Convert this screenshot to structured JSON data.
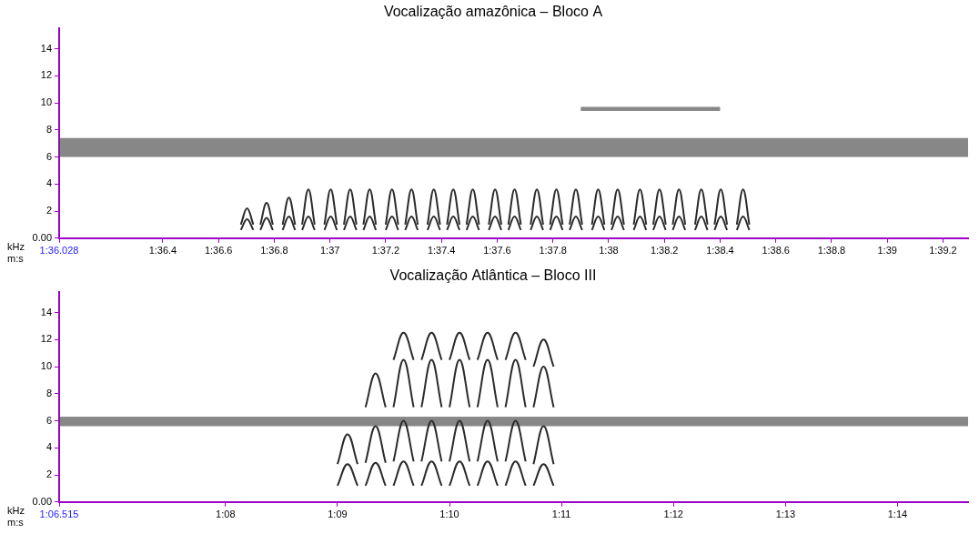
{
  "chart_data": [
    {
      "type": "spectrogram",
      "title": "Vocalização amazônica – Bloco A",
      "x_label": "m:s",
      "y_label": "kHz",
      "color": "#2b2b2b",
      "grid": false,
      "xlim": [
        96.028,
        99.29
      ],
      "ylim": [
        0,
        15.5
      ],
      "xticks": [
        {
          "value": 96.028,
          "label": "1:36.028"
        },
        {
          "value": 96.4,
          "label": "1:36.4"
        },
        {
          "value": 96.6,
          "label": "1:36.6"
        },
        {
          "value": 96.8,
          "label": "1:36.8"
        },
        {
          "value": 97.0,
          "label": "1:37"
        },
        {
          "value": 97.2,
          "label": "1:37.2"
        },
        {
          "value": 97.4,
          "label": "1:37.4"
        },
        {
          "value": 97.6,
          "label": "1:37.6"
        },
        {
          "value": 97.8,
          "label": "1:37.8"
        },
        {
          "value": 98.0,
          "label": "1:38"
        },
        {
          "value": 98.2,
          "label": "1:38.2"
        },
        {
          "value": 98.4,
          "label": "1:38.4"
        },
        {
          "value": 98.6,
          "label": "1:38.6"
        },
        {
          "value": 98.8,
          "label": "1:38.8"
        },
        {
          "value": 99.0,
          "label": "1:39"
        },
        {
          "value": 99.2,
          "label": "1:39.2"
        }
      ],
      "yticks": [
        {
          "value": 0,
          "label": "0.00"
        },
        2,
        4,
        6,
        8,
        10,
        12,
        14
      ],
      "bands": [
        {
          "start": 96.028,
          "end": 99.29,
          "low": 6.0,
          "high": 7.4
        },
        {
          "start": 97.9,
          "end": 98.4,
          "low": 9.4,
          "high": 9.7
        }
      ],
      "notes": [
        {
          "start": 96.68,
          "end": 96.725,
          "arches": [
            {
              "low": 1.0,
              "high": 2.2
            },
            {
              "low": 0.6,
              "high": 1.4
            }
          ]
        },
        {
          "start": 96.75,
          "end": 96.795,
          "arches": [
            {
              "low": 1.0,
              "high": 2.6
            },
            {
              "low": 0.6,
              "high": 1.5
            }
          ]
        },
        {
          "start": 96.83,
          "end": 96.875,
          "arches": [
            {
              "low": 1.0,
              "high": 3.0
            },
            {
              "low": 0.6,
              "high": 1.6
            }
          ]
        },
        {
          "start": 96.9,
          "end": 96.945,
          "arches": [
            {
              "low": 1.0,
              "high": 3.6
            },
            {
              "low": 0.6,
              "high": 1.6
            }
          ]
        },
        {
          "start": 96.98,
          "end": 97.025,
          "arches": [
            {
              "low": 1.0,
              "high": 3.6
            },
            {
              "low": 0.6,
              "high": 1.6
            }
          ]
        },
        {
          "start": 97.05,
          "end": 97.095,
          "arches": [
            {
              "low": 1.0,
              "high": 3.6
            },
            {
              "low": 0.6,
              "high": 1.6
            }
          ]
        },
        {
          "start": 97.12,
          "end": 97.165,
          "arches": [
            {
              "low": 1.0,
              "high": 3.6
            },
            {
              "low": 0.6,
              "high": 1.6
            }
          ]
        },
        {
          "start": 97.2,
          "end": 97.245,
          "arches": [
            {
              "low": 1.0,
              "high": 3.6
            },
            {
              "low": 0.6,
              "high": 1.6
            }
          ]
        },
        {
          "start": 97.27,
          "end": 97.315,
          "arches": [
            {
              "low": 1.0,
              "high": 3.6
            },
            {
              "low": 0.6,
              "high": 1.6
            }
          ]
        },
        {
          "start": 97.35,
          "end": 97.395,
          "arches": [
            {
              "low": 1.0,
              "high": 3.6
            },
            {
              "low": 0.6,
              "high": 1.6
            }
          ]
        },
        {
          "start": 97.42,
          "end": 97.465,
          "arches": [
            {
              "low": 1.0,
              "high": 3.6
            },
            {
              "low": 0.6,
              "high": 1.6
            }
          ]
        },
        {
          "start": 97.49,
          "end": 97.535,
          "arches": [
            {
              "low": 1.0,
              "high": 3.6
            },
            {
              "low": 0.6,
              "high": 1.6
            }
          ]
        },
        {
          "start": 97.57,
          "end": 97.615,
          "arches": [
            {
              "low": 1.0,
              "high": 3.6
            },
            {
              "low": 0.6,
              "high": 1.6
            }
          ]
        },
        {
          "start": 97.64,
          "end": 97.685,
          "arches": [
            {
              "low": 1.0,
              "high": 3.6
            },
            {
              "low": 0.6,
              "high": 1.6
            }
          ]
        },
        {
          "start": 97.72,
          "end": 97.765,
          "arches": [
            {
              "low": 1.0,
              "high": 3.6
            },
            {
              "low": 0.6,
              "high": 1.6
            }
          ]
        },
        {
          "start": 97.79,
          "end": 97.835,
          "arches": [
            {
              "low": 1.0,
              "high": 3.6
            },
            {
              "low": 0.6,
              "high": 1.6
            }
          ]
        },
        {
          "start": 97.86,
          "end": 97.905,
          "arches": [
            {
              "low": 1.0,
              "high": 3.6
            },
            {
              "low": 0.6,
              "high": 1.6
            }
          ]
        },
        {
          "start": 97.94,
          "end": 97.985,
          "arches": [
            {
              "low": 1.0,
              "high": 3.6
            },
            {
              "low": 0.6,
              "high": 1.6
            }
          ]
        },
        {
          "start": 98.01,
          "end": 98.055,
          "arches": [
            {
              "low": 1.0,
              "high": 3.6
            },
            {
              "low": 0.6,
              "high": 1.6
            }
          ]
        },
        {
          "start": 98.09,
          "end": 98.135,
          "arches": [
            {
              "low": 1.0,
              "high": 3.6
            },
            {
              "low": 0.6,
              "high": 1.6
            }
          ]
        },
        {
          "start": 98.16,
          "end": 98.205,
          "arches": [
            {
              "low": 1.0,
              "high": 3.6
            },
            {
              "low": 0.6,
              "high": 1.6
            }
          ]
        },
        {
          "start": 98.23,
          "end": 98.275,
          "arches": [
            {
              "low": 1.0,
              "high": 3.6
            },
            {
              "low": 0.6,
              "high": 1.6
            }
          ]
        },
        {
          "start": 98.31,
          "end": 98.355,
          "arches": [
            {
              "low": 1.0,
              "high": 3.6
            },
            {
              "low": 0.6,
              "high": 1.6
            }
          ]
        },
        {
          "start": 98.38,
          "end": 98.425,
          "arches": [
            {
              "low": 1.0,
              "high": 3.6
            },
            {
              "low": 0.6,
              "high": 1.6
            }
          ]
        },
        {
          "start": 98.46,
          "end": 98.505,
          "arches": [
            {
              "low": 1.0,
              "high": 3.6
            },
            {
              "low": 0.6,
              "high": 1.6
            }
          ]
        }
      ]
    },
    {
      "type": "spectrogram",
      "title": "Vocalização Atlântica – Bloco III",
      "x_label": "m:s",
      "y_label": "kHz",
      "color": "#2b2b2b",
      "grid": false,
      "xlim": [
        66.515,
        74.63
      ],
      "ylim": [
        0,
        15.5
      ],
      "xticks": [
        {
          "value": 66.515,
          "label": "1:06.515"
        },
        {
          "value": 68,
          "label": "1:08"
        },
        {
          "value": 69,
          "label": "1:09"
        },
        {
          "value": 70,
          "label": "1:10"
        },
        {
          "value": 71,
          "label": "1:11"
        },
        {
          "value": 72,
          "label": "1:12"
        },
        {
          "value": 73,
          "label": "1:13"
        },
        {
          "value": 74,
          "label": "1:14"
        }
      ],
      "yticks": [
        {
          "value": 0,
          "label": "0.00"
        },
        2,
        4,
        6,
        8,
        10,
        12,
        14
      ],
      "bands": [
        {
          "start": 66.515,
          "end": 74.63,
          "low": 5.6,
          "high": 6.3
        }
      ],
      "notes": [
        {
          "start": 69.0,
          "end": 69.18,
          "arches": [
            {
              "low": 1.2,
              "high": 2.8
            },
            {
              "low": 2.8,
              "high": 5.0
            }
          ]
        },
        {
          "start": 69.25,
          "end": 69.43,
          "arches": [
            {
              "low": 1.2,
              "high": 2.9
            },
            {
              "low": 2.9,
              "high": 5.6
            },
            {
              "low": 7.0,
              "high": 9.5
            }
          ]
        },
        {
          "start": 69.5,
          "end": 69.68,
          "arches": [
            {
              "low": 1.2,
              "high": 3.0
            },
            {
              "low": 3.0,
              "high": 6.0
            },
            {
              "low": 7.0,
              "high": 10.5
            },
            {
              "low": 10.5,
              "high": 12.5
            }
          ]
        },
        {
          "start": 69.75,
          "end": 69.93,
          "arches": [
            {
              "low": 1.2,
              "high": 3.0
            },
            {
              "low": 3.0,
              "high": 6.0
            },
            {
              "low": 7.0,
              "high": 10.5
            },
            {
              "low": 10.5,
              "high": 12.5
            }
          ]
        },
        {
          "start": 70.0,
          "end": 70.18,
          "arches": [
            {
              "low": 1.2,
              "high": 3.0
            },
            {
              "low": 3.0,
              "high": 6.0
            },
            {
              "low": 7.0,
              "high": 10.5
            },
            {
              "low": 10.5,
              "high": 12.5
            }
          ]
        },
        {
          "start": 70.25,
          "end": 70.43,
          "arches": [
            {
              "low": 1.2,
              "high": 3.0
            },
            {
              "low": 3.0,
              "high": 6.0
            },
            {
              "low": 7.0,
              "high": 10.5
            },
            {
              "low": 10.5,
              "high": 12.5
            }
          ]
        },
        {
          "start": 70.5,
          "end": 70.68,
          "arches": [
            {
              "low": 1.2,
              "high": 3.0
            },
            {
              "low": 3.0,
              "high": 6.0
            },
            {
              "low": 7.0,
              "high": 10.5
            },
            {
              "low": 10.5,
              "high": 12.5
            }
          ]
        },
        {
          "start": 70.75,
          "end": 70.93,
          "arches": [
            {
              "low": 1.2,
              "high": 2.8
            },
            {
              "low": 2.8,
              "high": 5.6
            },
            {
              "low": 7.0,
              "high": 10.0
            },
            {
              "low": 10.0,
              "high": 12.0
            }
          ]
        }
      ]
    }
  ]
}
